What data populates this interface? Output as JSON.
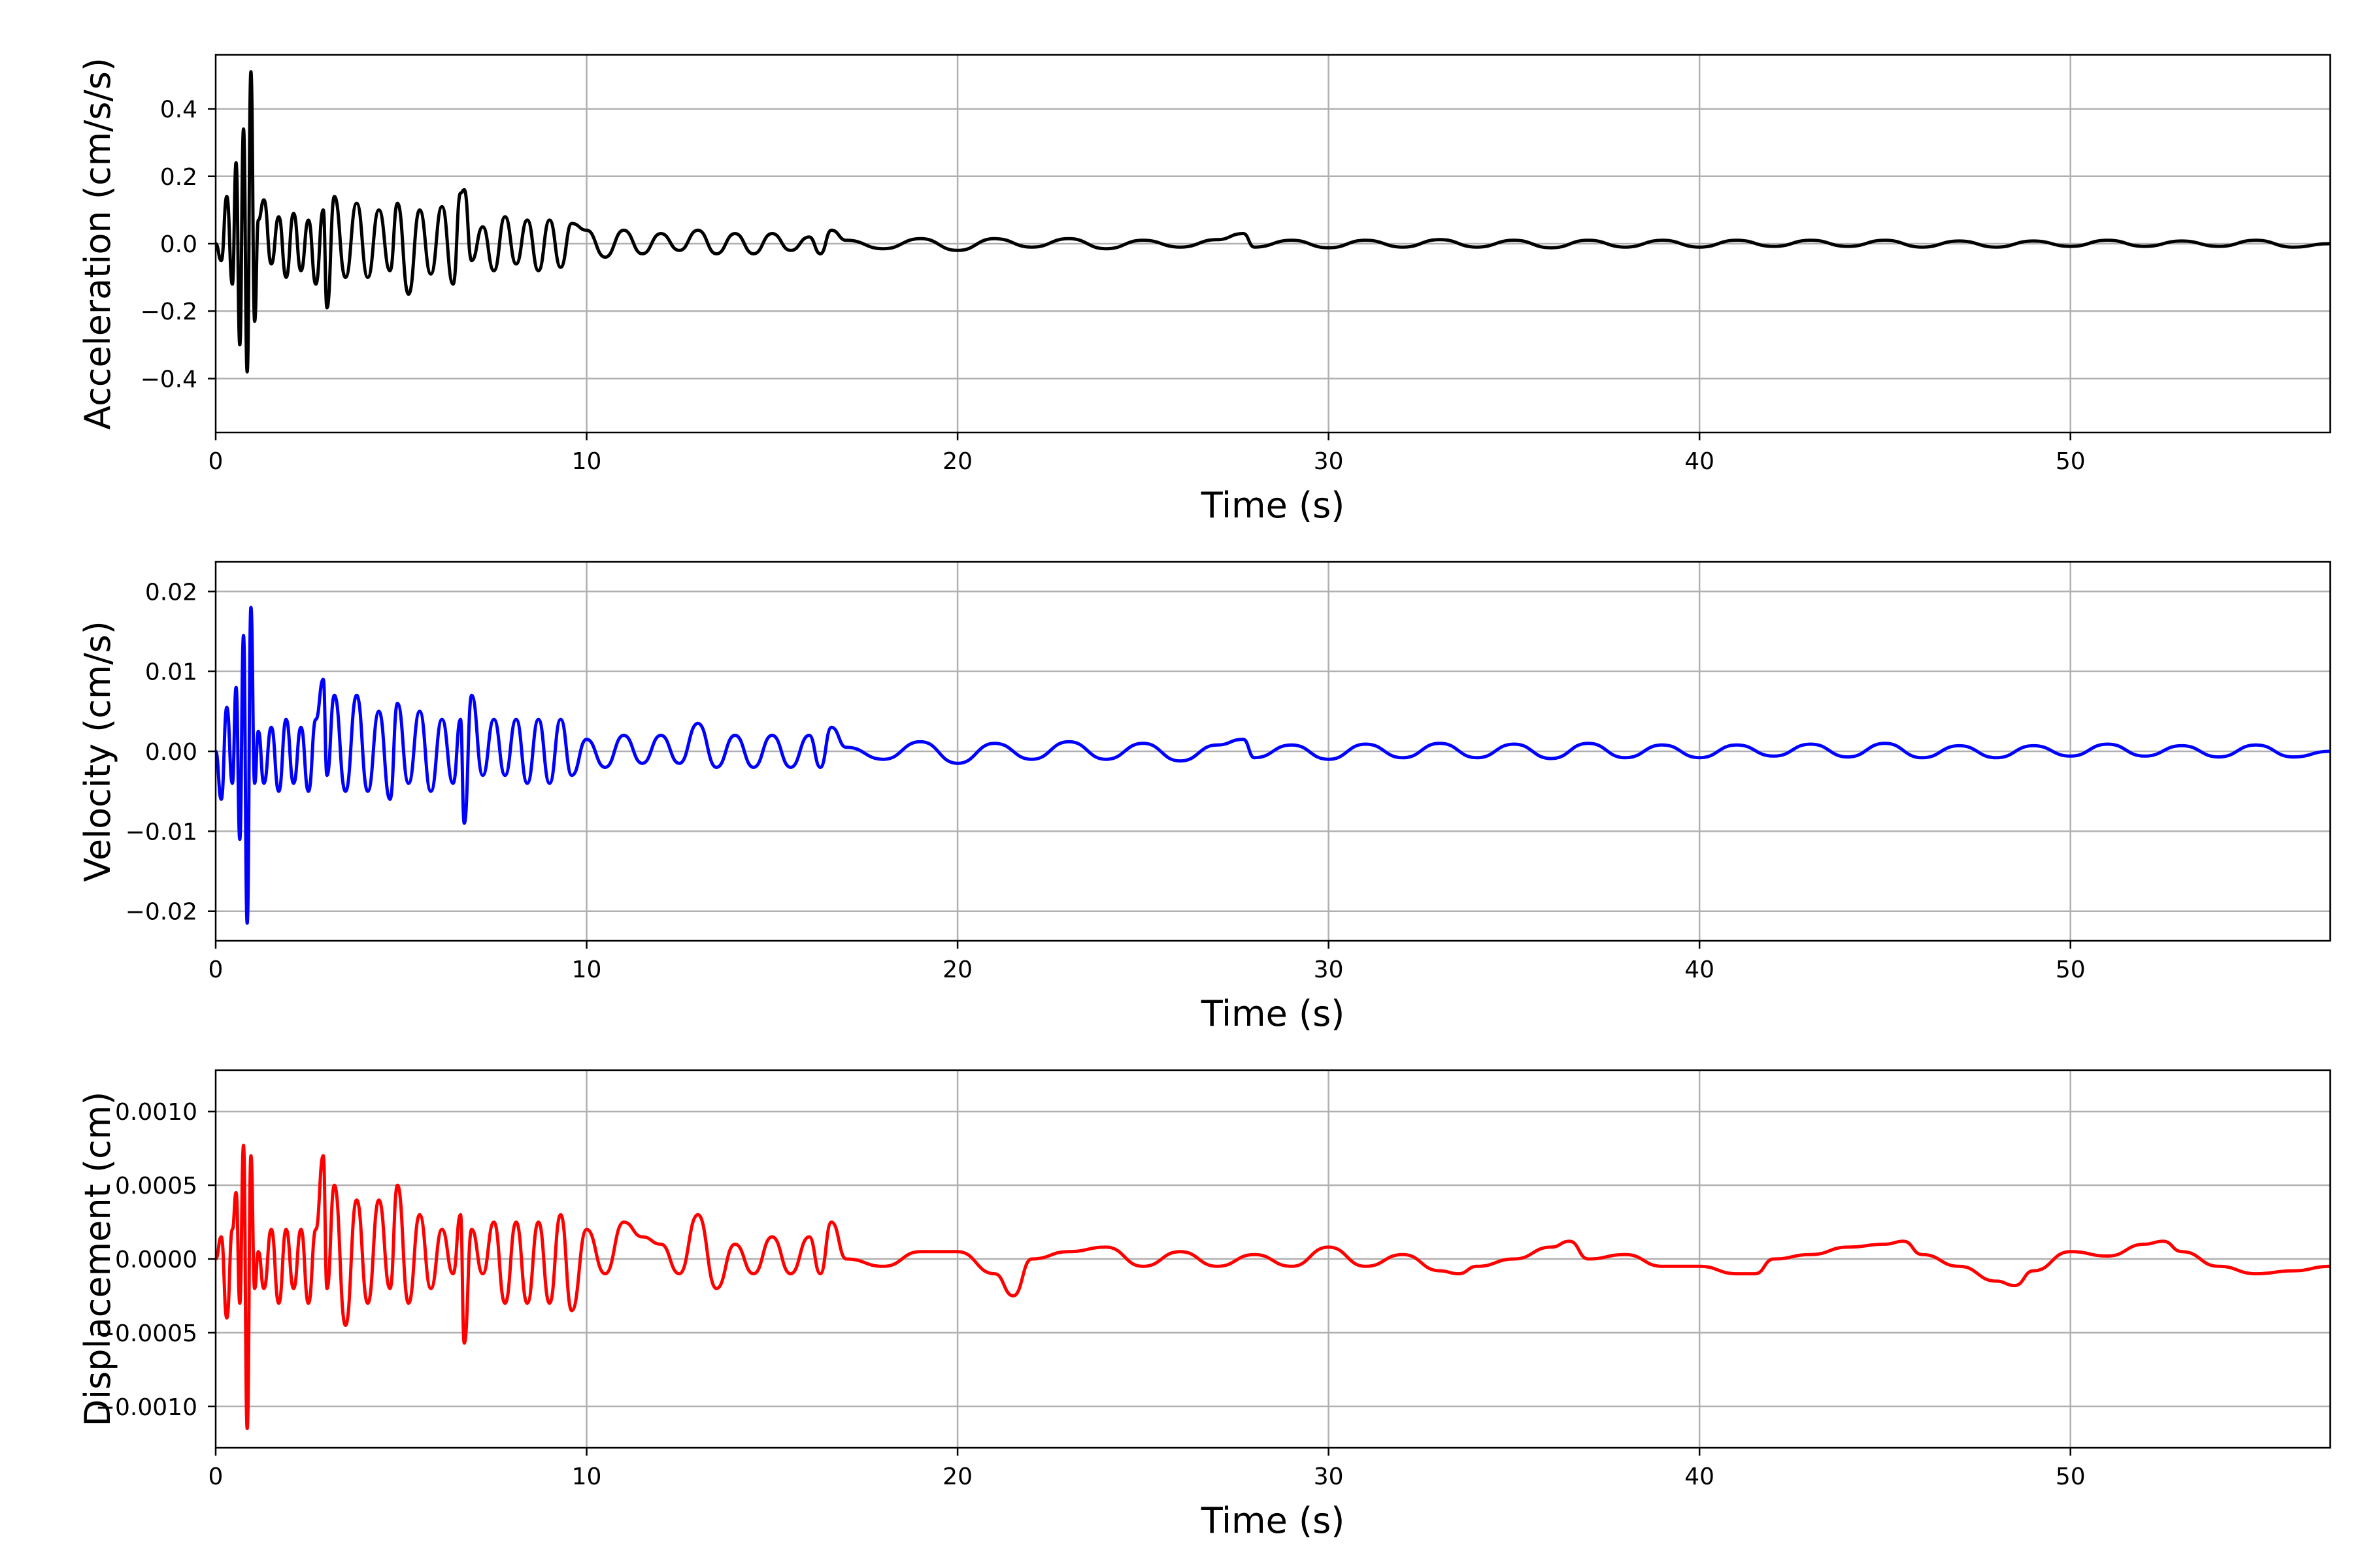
{
  "chart_data": [
    {
      "type": "line",
      "xlabel": "Time (s)",
      "ylabel": "Acceleration (cm/s/s)",
      "color": "#000000",
      "xlim": [
        0,
        57
      ],
      "ylim": [
        -0.56,
        0.56
      ],
      "xticks": [
        0,
        10,
        20,
        30,
        40,
        50
      ],
      "xtick_labels": [
        "0",
        "10",
        "20",
        "30",
        "40",
        "50"
      ],
      "yticks": [
        -0.4,
        -0.2,
        0.0,
        0.2,
        0.4
      ],
      "ytick_labels": [
        "−0.4",
        "−0.2",
        "0.0",
        "0.2",
        "0.4"
      ],
      "grid": true,
      "series": [
        {
          "x": [
            0,
            0.15,
            0.3,
            0.45,
            0.55,
            0.65,
            0.75,
            0.85,
            0.95,
            1.05,
            1.15,
            1.3,
            1.5,
            1.7,
            1.9,
            2.1,
            2.3,
            2.5,
            2.7,
            2.9,
            3.0,
            3.2,
            3.5,
            3.8,
            4.1,
            4.4,
            4.7,
            4.9,
            5.2,
            5.5,
            5.8,
            6.1,
            6.4,
            6.6,
            6.7,
            6.9,
            7.2,
            7.5,
            7.8,
            8.1,
            8.4,
            8.7,
            9.0,
            9.3,
            9.6,
            10.0,
            10.5,
            11.0,
            11.5,
            12.0,
            12.5,
            13.0,
            13.5,
            14.0,
            14.5,
            15.0,
            15.5,
            16.0,
            16.3,
            16.6,
            17.0,
            18.0,
            19.0,
            20.0,
            21.0,
            22.0,
            23.0,
            24.0,
            25.0,
            26.0,
            27.0,
            27.7,
            28.0,
            29.0,
            30.0,
            31.0,
            32.0,
            33.0,
            34.0,
            35.0,
            36.0,
            37.0,
            38.0,
            39.0,
            40.0,
            41.0,
            42.0,
            43.0,
            44.0,
            45.0,
            46.0,
            47.0,
            48.0,
            49.0,
            50.0,
            51.0,
            52.0,
            53.0,
            54.0,
            55.0,
            56.0,
            57.0
          ],
          "y": [
            0.0,
            -0.05,
            0.14,
            -0.12,
            0.24,
            -0.3,
            0.34,
            -0.38,
            0.51,
            -0.23,
            0.07,
            0.13,
            -0.06,
            0.08,
            -0.1,
            0.09,
            -0.08,
            0.07,
            -0.12,
            0.1,
            -0.19,
            0.14,
            -0.1,
            0.12,
            -0.1,
            0.1,
            -0.08,
            0.12,
            -0.15,
            0.1,
            -0.09,
            0.11,
            -0.12,
            0.15,
            0.16,
            -0.05,
            0.05,
            -0.08,
            0.08,
            -0.06,
            0.07,
            -0.08,
            0.07,
            -0.07,
            0.06,
            0.04,
            -0.04,
            0.04,
            -0.03,
            0.03,
            -0.02,
            0.04,
            -0.03,
            0.03,
            -0.03,
            0.03,
            -0.02,
            0.02,
            -0.03,
            0.04,
            0.01,
            -0.015,
            0.015,
            -0.02,
            0.015,
            -0.01,
            0.015,
            -0.015,
            0.01,
            -0.01,
            0.012,
            0.03,
            -0.01,
            0.01,
            -0.012,
            0.01,
            -0.01,
            0.012,
            -0.01,
            0.01,
            -0.012,
            0.01,
            -0.01,
            0.01,
            -0.01,
            0.01,
            -0.008,
            0.01,
            -0.008,
            0.01,
            -0.01,
            0.008,
            -0.01,
            0.008,
            -0.008,
            0.01,
            -0.008,
            0.008,
            -0.008,
            0.01,
            -0.01,
            0.0
          ]
        }
      ]
    },
    {
      "type": "line",
      "xlabel": "Time (s)",
      "ylabel": "Velocity (cm/s)",
      "color": "#0000ff",
      "xlim": [
        0,
        57
      ],
      "ylim": [
        -0.0237,
        0.0237
      ],
      "xticks": [
        0,
        10,
        20,
        30,
        40,
        50
      ],
      "xtick_labels": [
        "0",
        "10",
        "20",
        "30",
        "40",
        "50"
      ],
      "yticks": [
        -0.02,
        -0.01,
        0.0,
        0.01,
        0.02
      ],
      "ytick_labels": [
        "−0.02",
        "−0.01",
        "0.00",
        "0.01",
        "0.02"
      ],
      "grid": true,
      "series": [
        {
          "x": [
            0,
            0.15,
            0.3,
            0.45,
            0.55,
            0.65,
            0.75,
            0.85,
            0.95,
            1.05,
            1.15,
            1.3,
            1.5,
            1.7,
            1.9,
            2.1,
            2.3,
            2.5,
            2.7,
            2.9,
            3.0,
            3.2,
            3.5,
            3.8,
            4.1,
            4.4,
            4.7,
            4.9,
            5.2,
            5.5,
            5.8,
            6.1,
            6.4,
            6.6,
            6.7,
            6.9,
            7.2,
            7.5,
            7.8,
            8.1,
            8.4,
            8.7,
            9.0,
            9.3,
            9.6,
            10.0,
            10.5,
            11.0,
            11.5,
            12.0,
            12.5,
            13.0,
            13.5,
            14.0,
            14.5,
            15.0,
            15.5,
            16.0,
            16.3,
            16.6,
            17.0,
            18.0,
            19.0,
            20.0,
            21.0,
            22.0,
            23.0,
            24.0,
            25.0,
            26.0,
            27.0,
            27.7,
            28.0,
            29.0,
            30.0,
            31.0,
            32.0,
            33.0,
            34.0,
            35.0,
            36.0,
            37.0,
            38.0,
            39.0,
            40.0,
            41.0,
            42.0,
            43.0,
            44.0,
            45.0,
            46.0,
            47.0,
            48.0,
            49.0,
            50.0,
            51.0,
            52.0,
            53.0,
            54.0,
            55.0,
            56.0,
            57.0
          ],
          "y": [
            0.0,
            -0.006,
            0.0055,
            -0.004,
            0.008,
            -0.011,
            0.0145,
            -0.0215,
            0.018,
            -0.004,
            0.0025,
            -0.004,
            0.003,
            -0.005,
            0.004,
            -0.004,
            0.003,
            -0.005,
            0.004,
            0.009,
            -0.003,
            0.007,
            -0.005,
            0.007,
            -0.005,
            0.005,
            -0.006,
            0.006,
            -0.004,
            0.005,
            -0.005,
            0.004,
            -0.004,
            0.004,
            -0.009,
            0.007,
            -0.003,
            0.004,
            -0.003,
            0.004,
            -0.004,
            0.004,
            -0.004,
            0.004,
            -0.003,
            0.0015,
            -0.002,
            0.002,
            -0.0015,
            0.002,
            -0.0015,
            0.0035,
            -0.002,
            0.002,
            -0.002,
            0.002,
            -0.002,
            0.002,
            -0.002,
            0.003,
            0.0005,
            -0.001,
            0.0012,
            -0.0015,
            0.001,
            -0.001,
            0.0012,
            -0.001,
            0.001,
            -0.0012,
            0.0008,
            0.0015,
            -0.0008,
            0.0008,
            -0.001,
            0.0009,
            -0.0008,
            0.001,
            -0.0008,
            0.0009,
            -0.0009,
            0.001,
            -0.0008,
            0.0008,
            -0.0008,
            0.0008,
            -0.0006,
            0.0009,
            -0.0007,
            0.001,
            -0.0008,
            0.0007,
            -0.0008,
            0.0007,
            -0.0006,
            0.0009,
            -0.0006,
            0.0007,
            -0.0007,
            0.0008,
            -0.0007,
            0.0
          ]
        }
      ]
    },
    {
      "type": "line",
      "xlabel": "Time (s)",
      "ylabel": "Displacement (cm)",
      "color": "#ff0000",
      "xlim": [
        0,
        57
      ],
      "ylim": [
        -0.00128,
        0.00128
      ],
      "xticks": [
        0,
        10,
        20,
        30,
        40,
        50
      ],
      "xtick_labels": [
        "0",
        "10",
        "20",
        "30",
        "40",
        "50"
      ],
      "yticks": [
        -0.001,
        -0.0005,
        0.0,
        0.0005,
        0.001
      ],
      "ytick_labels": [
        "−0.0010",
        "−0.0005",
        "0.0000",
        "0.0005",
        "0.0010"
      ],
      "grid": true,
      "series": [
        {
          "x": [
            0,
            0.15,
            0.3,
            0.45,
            0.55,
            0.65,
            0.75,
            0.85,
            0.95,
            1.05,
            1.15,
            1.3,
            1.5,
            1.7,
            1.9,
            2.1,
            2.3,
            2.5,
            2.7,
            2.9,
            3.0,
            3.2,
            3.5,
            3.8,
            4.1,
            4.4,
            4.7,
            4.9,
            5.2,
            5.5,
            5.8,
            6.1,
            6.4,
            6.6,
            6.7,
            6.9,
            7.2,
            7.5,
            7.8,
            8.1,
            8.4,
            8.7,
            9.0,
            9.3,
            9.6,
            10.0,
            10.5,
            11.0,
            11.5,
            12.0,
            12.5,
            13.0,
            13.5,
            14.0,
            14.5,
            15.0,
            15.5,
            16.0,
            16.3,
            16.6,
            17.0,
            18.0,
            19.0,
            20.0,
            21.0,
            21.5,
            22.0,
            23.0,
            24.0,
            25.0,
            26.0,
            27.0,
            28.0,
            29.0,
            30.0,
            31.0,
            32.0,
            33.0,
            33.5,
            34.0,
            35.0,
            36.0,
            36.5,
            37.0,
            38.0,
            39.0,
            40.0,
            41.0,
            41.5,
            42.0,
            43.0,
            44.0,
            45.0,
            45.5,
            46.0,
            47.0,
            48.0,
            48.5,
            49.0,
            50.0,
            51.0,
            52.0,
            52.5,
            53.0,
            54.0,
            55.0,
            56.0,
            57.0
          ],
          "y": [
            0.0,
            0.00015,
            -0.0004,
            0.0002,
            0.00045,
            -0.0003,
            0.00077,
            -0.00115,
            0.0007,
            -0.0002,
            5e-05,
            -0.0002,
            0.0002,
            -0.0003,
            0.0002,
            -0.0002,
            0.0002,
            -0.0003,
            0.0002,
            0.0007,
            -0.0002,
            0.0005,
            -0.00045,
            0.0004,
            -0.0003,
            0.0004,
            -0.0002,
            0.0005,
            -0.0003,
            0.0003,
            -0.0002,
            0.0002,
            -0.0001,
            0.0003,
            -0.00057,
            0.0002,
            -0.0001,
            0.00025,
            -0.0003,
            0.00025,
            -0.0003,
            0.00025,
            -0.0003,
            0.0003,
            -0.00035,
            0.0002,
            -0.0001,
            0.00025,
            0.00015,
            0.0001,
            -0.0001,
            0.0003,
            -0.0002,
            0.0001,
            -0.0001,
            0.00015,
            -0.0001,
            0.00015,
            -0.0001,
            0.00025,
            0.0,
            -5e-05,
            5e-05,
            5e-05,
            -0.0001,
            -0.00025,
            0.0,
            5e-05,
            8e-05,
            -5e-05,
            5e-05,
            -5e-05,
            3e-05,
            -5e-05,
            8e-05,
            -5e-05,
            3e-05,
            -8e-05,
            -0.0001,
            -5e-05,
            0.0,
            8e-05,
            0.00012,
            0.0,
            3e-05,
            -5e-05,
            -5e-05,
            -0.0001,
            -0.0001,
            0.0,
            3e-05,
            8e-05,
            0.0001,
            0.00012,
            3e-05,
            -5e-05,
            -0.00015,
            -0.00018,
            -8e-05,
            5e-05,
            2e-05,
            0.0001,
            0.00012,
            5e-05,
            -5e-05,
            -0.0001,
            -8e-05,
            -5e-05
          ]
        }
      ]
    }
  ]
}
